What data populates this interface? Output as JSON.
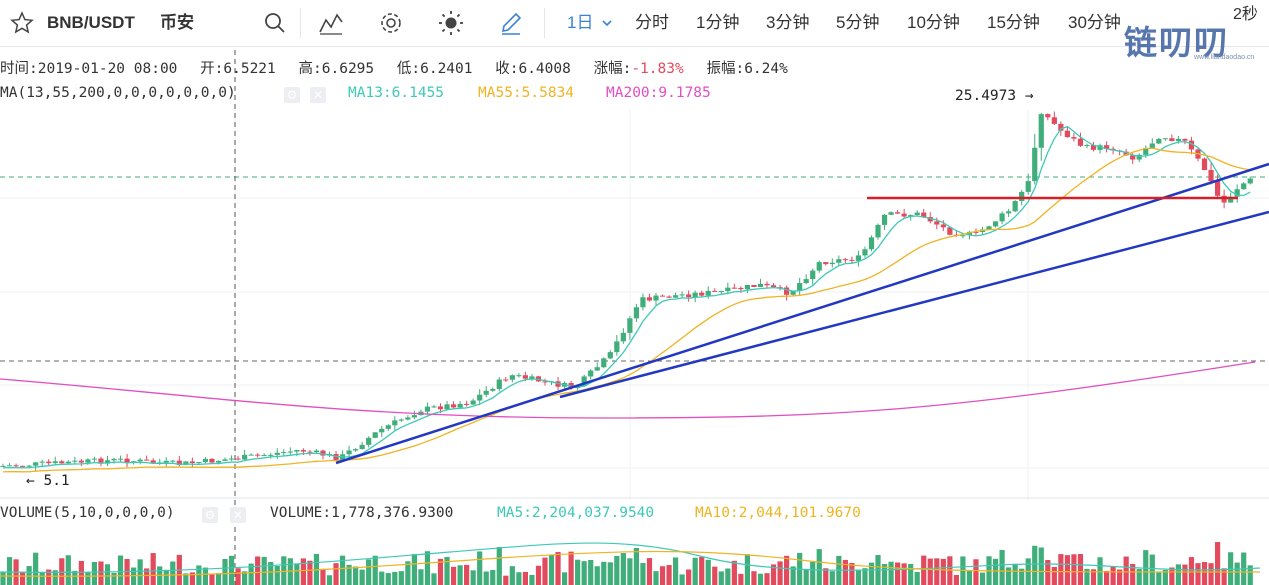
{
  "toolbar": {
    "symbol": "BNB/USDT",
    "exchange": "币安",
    "icons": [
      "search-icon",
      "indicator-icon",
      "gear-icon",
      "theme-sun-icon",
      "pencil-icon"
    ],
    "interval_selected": "1日",
    "intervals": [
      "分时",
      "1分钟",
      "3分钟",
      "5分钟",
      "10分钟",
      "15分钟",
      "30分钟"
    ],
    "interval_cut": "2秒",
    "watermark": "链叨叨",
    "watermark_url": "www.liandaodao.cn"
  },
  "ohlc_bar": {
    "time_label": "时间:",
    "time_value": "2019-01-20 08:00",
    "open_label": "开:",
    "open_value": "6.5221",
    "high_label": "高:",
    "high_value": "6.6295",
    "low_label": "低:",
    "low_value": "6.2401",
    "close_label": "收:",
    "close_value": "6.4008",
    "change_label": "涨幅:",
    "change_value": "-1.83%",
    "amplitude_label": "振幅:",
    "amplitude_value": "6.24%"
  },
  "ma_indicator": {
    "name": "MA(13,55,200,0,0,0,0,0,0,0)",
    "ma13": "MA13:6.1455",
    "ma55": "MA55:5.5834",
    "ma200": "MA200:9.1785"
  },
  "volume_indicator": {
    "name": "VOLUME(5,10,0,0,0,0)",
    "volume": "VOLUME:1,778,376.9300",
    "ma5": "MA5:2,204,037.9540",
    "ma10": "MA10:2,044,101.9670"
  },
  "annotations": {
    "high_marker": "25.4973 →",
    "low_marker": "← 5.1"
  },
  "colors": {
    "up": "#3fae7a",
    "down": "#e24a5d",
    "ma13": "#3ec9b6",
    "ma55": "#f0b323",
    "ma200": "#e14fc0",
    "trendline": "#2238c2",
    "resistance": "#d4202a",
    "accent": "#3b82d6"
  },
  "chart_data": {
    "type": "candlestick",
    "interval": "1日",
    "series": [
      {
        "name": "MA13",
        "last": 6.1455
      },
      {
        "name": "MA55",
        "last": 5.5834
      },
      {
        "name": "MA200",
        "last": 9.1785
      }
    ],
    "selected_candle": {
      "time": "2019-01-20 08:00",
      "open": 6.5221,
      "high": 6.6295,
      "low": 6.2401,
      "close": 6.4008
    },
    "visible_high": 25.4973,
    "visible_low": 5.1,
    "volume": {
      "last": 1778376.93,
      "ma5": 2204037.954,
      "ma10": 2044101.967
    }
  }
}
